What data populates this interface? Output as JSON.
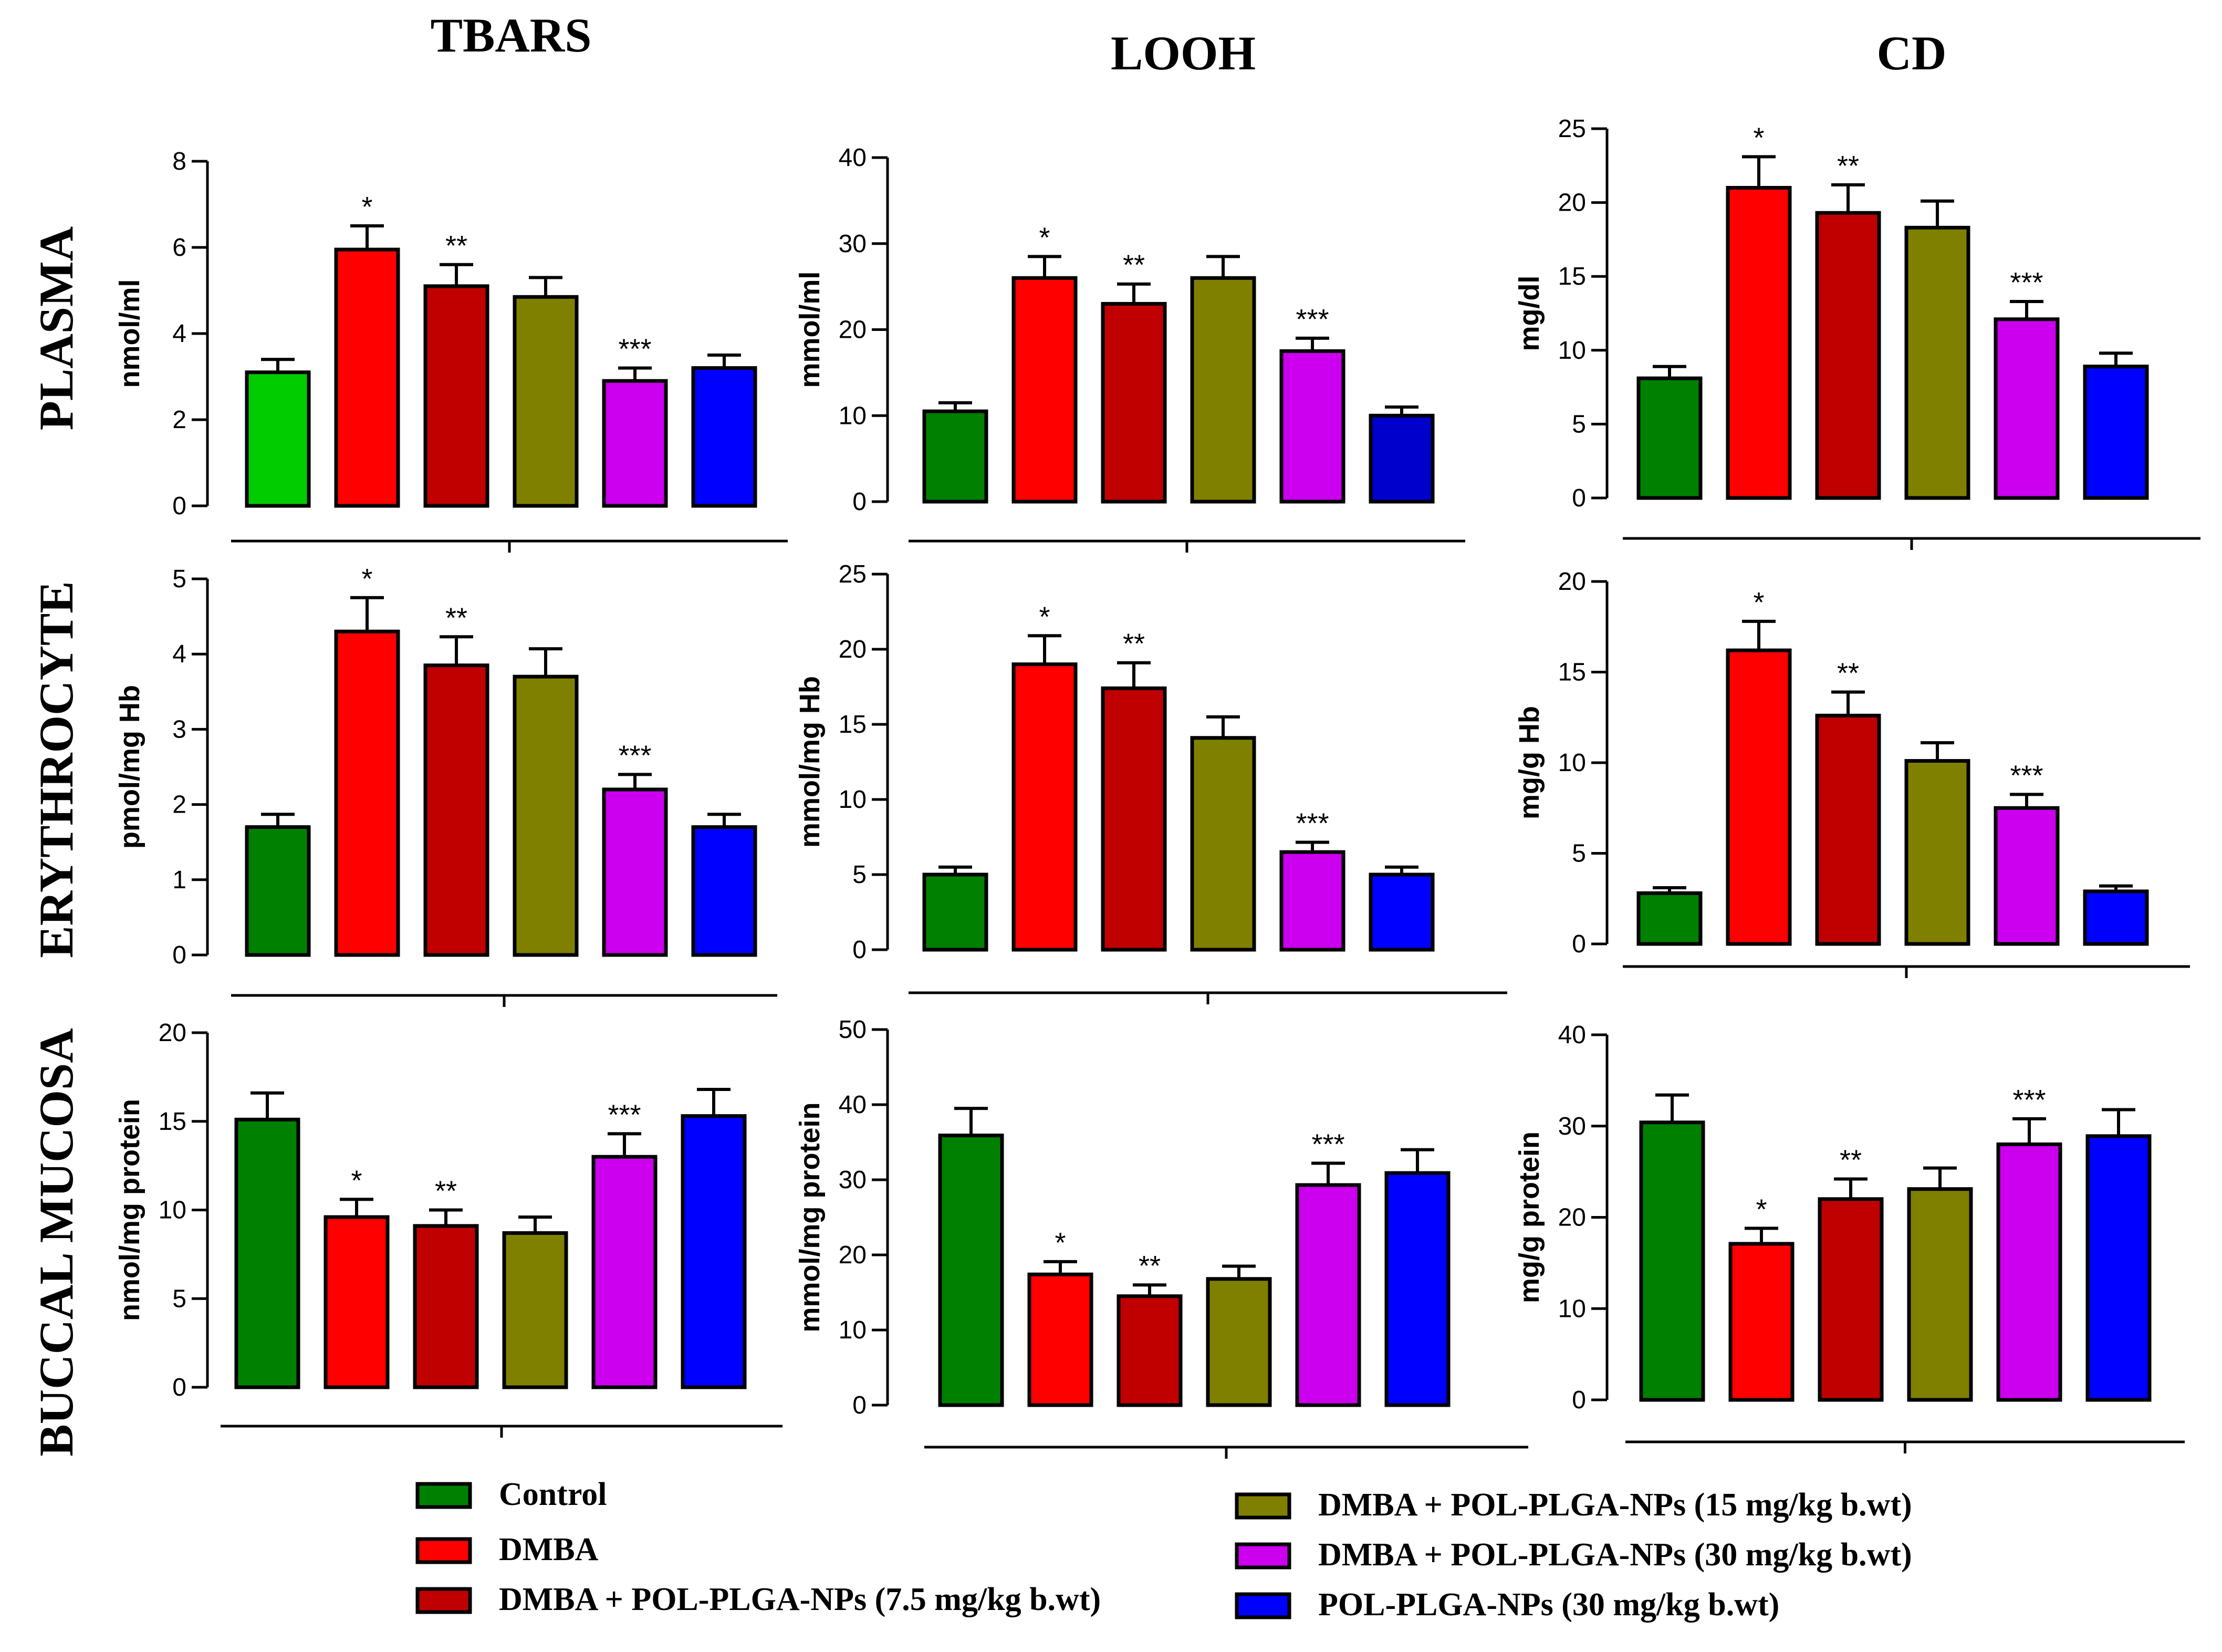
{
  "column_titles": [
    "TBARS",
    "LOOH",
    "CD"
  ],
  "row_titles": [
    "PLASMA",
    "ERYTHROCYTE",
    "BUCCAL MUCOSA"
  ],
  "colors": {
    "control_plasma_tbars": "#00cc00",
    "control": "#008000",
    "dmba": "#ff0000",
    "dmba_7_5": "#c00000",
    "dmba_15": "#808000",
    "dmba_30": "#cc00ee",
    "pol_30": "#0000ff",
    "pol_30_plasma_looh": "#0000cc"
  },
  "legend": [
    {
      "label": "Control",
      "color": "#008000"
    },
    {
      "label": "DMBA",
      "color": "#ff0000"
    },
    {
      "label": "DMBA + POL-PLGA-NPs (7.5 mg/kg b.wt)",
      "color": "#c00000"
    },
    {
      "label": "DMBA + POL-PLGA-NPs (15 mg/kg b.wt)",
      "color": "#808000"
    },
    {
      "label": "DMBA + POL-PLGA-NPs (30 mg/kg b.wt)",
      "color": "#cc00ee"
    },
    {
      "label": "POL-PLGA-NPs (30 mg/kg b.wt)",
      "color": "#0000ff"
    }
  ],
  "chart_data": [
    {
      "type": "bar",
      "row": "PLASMA",
      "column": "TBARS",
      "ylabel": "nmol/ml",
      "ylim": [
        0,
        8
      ],
      "yticks": [
        0,
        2,
        4,
        6,
        8
      ],
      "values": [
        3.1,
        5.95,
        5.1,
        4.85,
        2.9,
        3.2
      ],
      "errors": [
        0.3,
        0.55,
        0.5,
        0.45,
        0.3,
        0.3
      ],
      "annotations": [
        "",
        "*",
        "**",
        "",
        "***",
        ""
      ],
      "colors": [
        "#00cc00",
        "#ff0000",
        "#c00000",
        "#808000",
        "#cc00ee",
        "#0000ff"
      ]
    },
    {
      "type": "bar",
      "row": "PLASMA",
      "column": "LOOH",
      "ylabel": "mmol/ml",
      "ylim": [
        0,
        40
      ],
      "yticks": [
        0,
        10,
        20,
        30,
        40
      ],
      "values": [
        10.5,
        26,
        23,
        26,
        17.5,
        10
      ],
      "errors": [
        1,
        2.5,
        2.3,
        2.5,
        1.5,
        1
      ],
      "annotations": [
        "",
        "*",
        "**",
        "",
        "***",
        ""
      ],
      "colors": [
        "#008000",
        "#ff0000",
        "#c00000",
        "#808000",
        "#cc00ee",
        "#0000cc"
      ]
    },
    {
      "type": "bar",
      "row": "PLASMA",
      "column": "CD",
      "ylabel": "mg/dl",
      "ylim": [
        0,
        25
      ],
      "yticks": [
        0,
        5,
        10,
        15,
        20,
        25
      ],
      "values": [
        8.1,
        21,
        19.3,
        18.3,
        12.1,
        8.9
      ],
      "errors": [
        0.8,
        2.1,
        1.9,
        1.8,
        1.2,
        0.9
      ],
      "annotations": [
        "",
        "*",
        "**",
        "",
        "***",
        ""
      ],
      "colors": [
        "#008000",
        "#ff0000",
        "#c00000",
        "#808000",
        "#cc00ee",
        "#0000ff"
      ]
    },
    {
      "type": "bar",
      "row": "ERYTHROCYTE",
      "column": "TBARS",
      "ylabel": "pmol/mg Hb",
      "ylim": [
        0,
        5
      ],
      "yticks": [
        0,
        1,
        2,
        3,
        4,
        5
      ],
      "values": [
        1.7,
        4.3,
        3.85,
        3.7,
        2.2,
        1.7
      ],
      "errors": [
        0.17,
        0.45,
        0.38,
        0.37,
        0.2,
        0.17
      ],
      "annotations": [
        "",
        "*",
        "**",
        "",
        "***",
        ""
      ],
      "colors": [
        "#008000",
        "#ff0000",
        "#c00000",
        "#808000",
        "#cc00ee",
        "#0000ff"
      ]
    },
    {
      "type": "bar",
      "row": "ERYTHROCYTE",
      "column": "LOOH",
      "ylabel": "mmol/mg Hb",
      "ylim": [
        0,
        25
      ],
      "yticks": [
        0,
        5,
        10,
        15,
        20,
        25
      ],
      "values": [
        5,
        19,
        17.4,
        14.1,
        6.5,
        5
      ],
      "errors": [
        0.5,
        1.9,
        1.7,
        1.4,
        0.65,
        0.5
      ],
      "annotations": [
        "",
        "*",
        "**",
        "",
        "***",
        ""
      ],
      "colors": [
        "#008000",
        "#ff0000",
        "#c00000",
        "#808000",
        "#cc00ee",
        "#0000ff"
      ]
    },
    {
      "type": "bar",
      "row": "ERYTHROCYTE",
      "column": "CD",
      "ylabel": "mg/g Hb",
      "ylim": [
        0,
        20
      ],
      "yticks": [
        0,
        5,
        10,
        15,
        20
      ],
      "values": [
        2.8,
        16.2,
        12.6,
        10.1,
        7.5,
        2.9
      ],
      "errors": [
        0.3,
        1.6,
        1.3,
        1,
        0.75,
        0.3
      ],
      "annotations": [
        "",
        "*",
        "**",
        "",
        "***",
        ""
      ],
      "colors": [
        "#008000",
        "#ff0000",
        "#c00000",
        "#808000",
        "#cc00ee",
        "#0000ff"
      ]
    },
    {
      "type": "bar",
      "row": "BUCCAL MUCOSA",
      "column": "TBARS",
      "ylabel": "nmol/mg protein",
      "ylim": [
        0,
        20
      ],
      "yticks": [
        0,
        5,
        10,
        15,
        20
      ],
      "values": [
        15.1,
        9.6,
        9.1,
        8.7,
        13,
        15.3
      ],
      "errors": [
        1.5,
        1,
        0.9,
        0.9,
        1.3,
        1.5
      ],
      "annotations": [
        "",
        "*",
        "**",
        "",
        "***",
        ""
      ],
      "colors": [
        "#008000",
        "#ff0000",
        "#c00000",
        "#808000",
        "#cc00ee",
        "#0000ff"
      ]
    },
    {
      "type": "bar",
      "row": "BUCCAL MUCOSA",
      "column": "LOOH",
      "ylabel": "mmol/mg protein",
      "ylim": [
        0,
        50
      ],
      "yticks": [
        0,
        10,
        20,
        30,
        40,
        50
      ],
      "values": [
        35.9,
        17.4,
        14.5,
        16.8,
        29.3,
        30.9
      ],
      "errors": [
        3.6,
        1.7,
        1.5,
        1.7,
        2.9,
        3.1
      ],
      "annotations": [
        "",
        "*",
        "**",
        "",
        "***",
        ""
      ],
      "colors": [
        "#008000",
        "#ff0000",
        "#c00000",
        "#808000",
        "#cc00ee",
        "#0000ff"
      ]
    },
    {
      "type": "bar",
      "row": "BUCCAL MUCOSA",
      "column": "CD",
      "ylabel": "mg/g protein",
      "ylim": [
        0,
        40
      ],
      "yticks": [
        0,
        10,
        20,
        30,
        40
      ],
      "values": [
        30.4,
        17.1,
        22,
        23.1,
        28,
        28.9
      ],
      "errors": [
        3,
        1.7,
        2.2,
        2.3,
        2.8,
        2.9
      ],
      "annotations": [
        "",
        "*",
        "**",
        "",
        "***",
        ""
      ],
      "colors": [
        "#008000",
        "#ff0000",
        "#c00000",
        "#808000",
        "#cc00ee",
        "#0000ff"
      ]
    }
  ]
}
